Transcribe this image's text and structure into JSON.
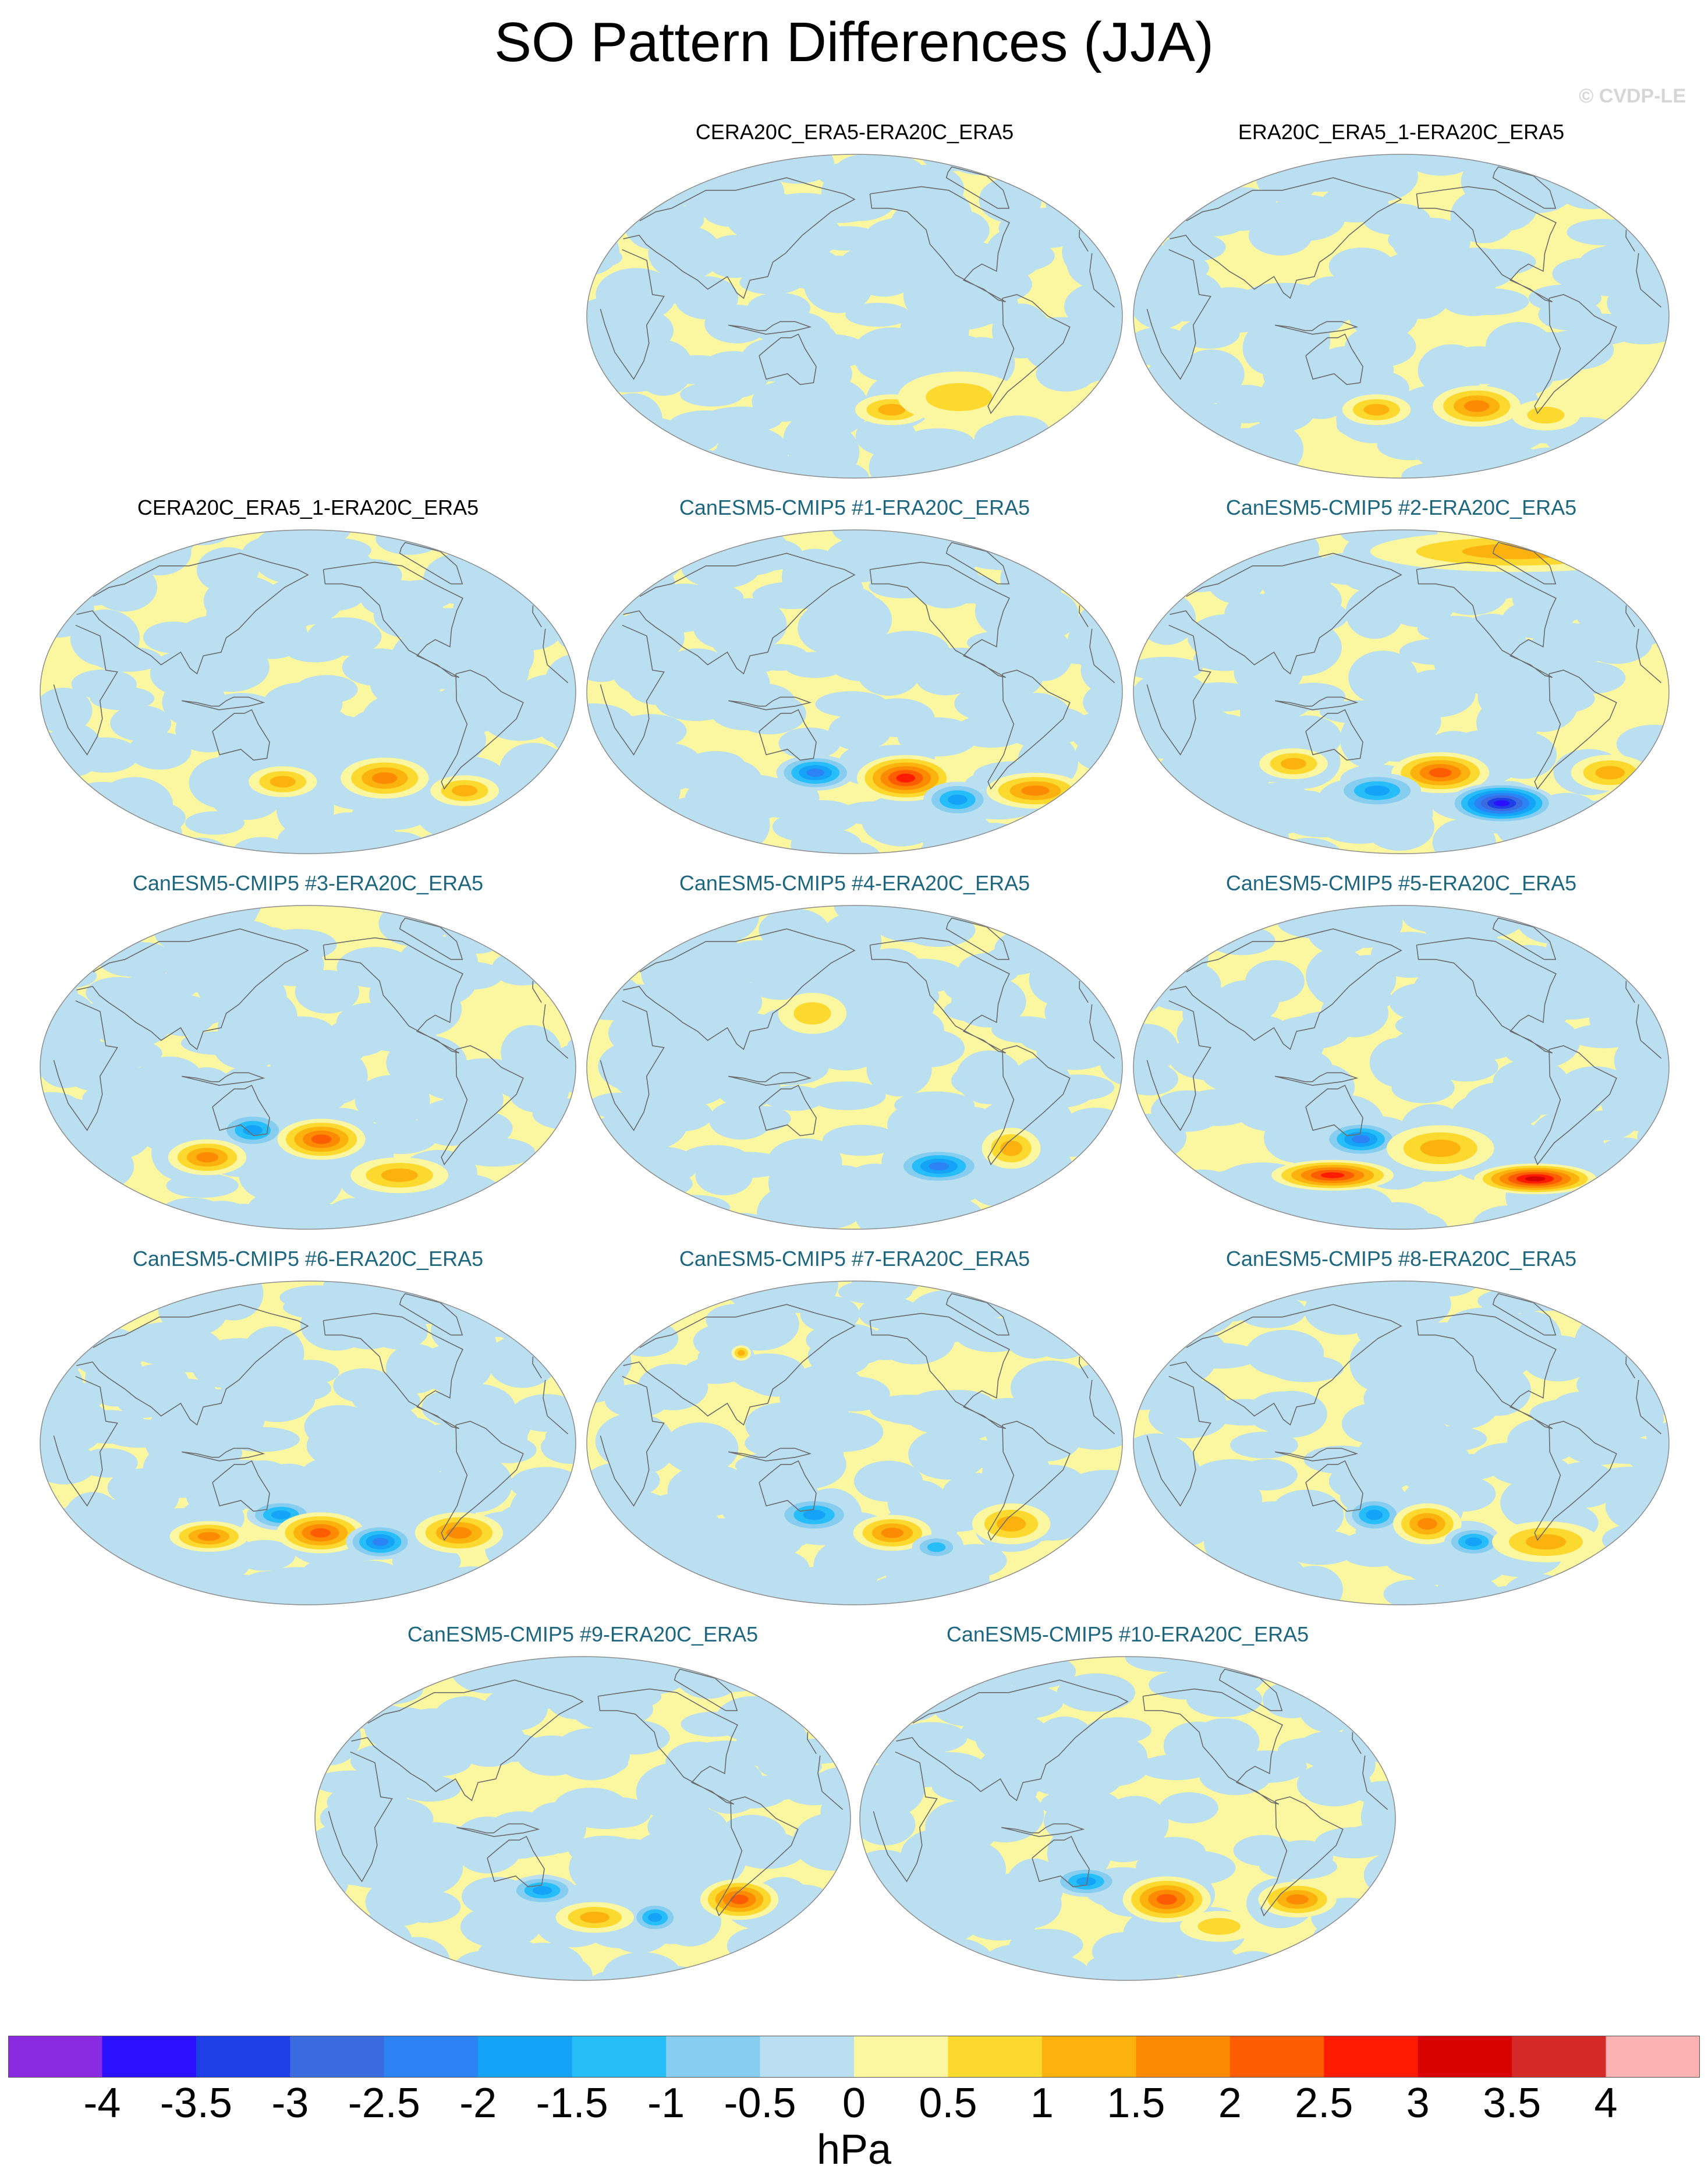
{
  "title": "SO Pattern Differences (JJA)",
  "watermark": "© CVDP-LE",
  "panels": [
    {
      "label": "CERA20C_ERA5-ERA20C_ERA5",
      "style": "obs",
      "blobs": [
        {
          "lon": -150,
          "lat": -52,
          "v": 1.0,
          "sx": 15,
          "sy": 6
        },
        {
          "lon": -100,
          "lat": -45,
          "v": 0.5,
          "sx": 25,
          "sy": 10
        }
      ]
    },
    {
      "label": "ERA20C_ERA5_1-ERA20C_ERA5",
      "style": "obs",
      "blobs": [
        {
          "lon": -120,
          "lat": -50,
          "v": 1.5,
          "sx": 18,
          "sy": 8
        },
        {
          "lon": 160,
          "lat": -52,
          "v": 0.8,
          "sx": 14,
          "sy": 6
        },
        {
          "lon": -60,
          "lat": -55,
          "v": 0.7,
          "sx": 14,
          "sy": 6
        }
      ]
    },
    {
      "label": "CERA20C_ERA5_1-ERA20C_ERA5",
      "style": "obs",
      "blobs": [
        {
          "lon": -120,
          "lat": -48,
          "v": 1.5,
          "sx": 18,
          "sy": 8
        },
        {
          "lon": 160,
          "lat": -50,
          "v": 0.8,
          "sx": 14,
          "sy": 6
        },
        {
          "lon": -50,
          "lat": -55,
          "v": 0.8,
          "sx": 14,
          "sy": 6
        }
      ]
    },
    {
      "label": "CanESM5-CMIP5 #1-ERA20C_ERA5",
      "style": "model",
      "blobs": [
        {
          "lon": 150,
          "lat": -45,
          "v": -2.0,
          "sx": 16,
          "sy": 7
        },
        {
          "lon": -140,
          "lat": -48,
          "v": 2.5,
          "sx": 20,
          "sy": 9
        },
        {
          "lon": -90,
          "lat": -60,
          "v": -1.5,
          "sx": 14,
          "sy": 7
        },
        {
          "lon": -30,
          "lat": -55,
          "v": 1.5,
          "sx": 20,
          "sy": 7
        }
      ]
    },
    {
      "label": "CanESM5-CMIP5 #2-ERA20C_ERA5",
      "style": "model",
      "blobs": [
        {
          "lon": -150,
          "lat": -45,
          "v": 2.0,
          "sx": 20,
          "sy": 8
        },
        {
          "lon": -90,
          "lat": -62,
          "v": -3.5,
          "sx": 22,
          "sy": 8
        },
        {
          "lon": 160,
          "lat": -55,
          "v": -1.5,
          "sx": 18,
          "sy": 7
        },
        {
          "lon": 100,
          "lat": -40,
          "v": 1.0,
          "sx": 14,
          "sy": 6
        },
        {
          "lon": -20,
          "lat": -45,
          "v": 1.0,
          "sx": 16,
          "sy": 7
        },
        {
          "lon": -40,
          "lat": 78,
          "v": 0.8,
          "sx": 60,
          "sy": 8
        }
      ]
    },
    {
      "label": "CanESM5-CMIP5 #3-ERA20C_ERA5",
      "style": "model",
      "blobs": [
        {
          "lon": 140,
          "lat": -35,
          "v": -1.5,
          "sx": 14,
          "sy": 7
        },
        {
          "lon": 100,
          "lat": -50,
          "v": 1.5,
          "sx": 16,
          "sy": 7
        },
        {
          "lon": -170,
          "lat": -40,
          "v": 2.0,
          "sx": 18,
          "sy": 8
        },
        {
          "lon": -100,
          "lat": -60,
          "v": 0.8,
          "sx": 20,
          "sy": 7
        }
      ]
    },
    {
      "label": "CanESM5-CMIP5 #4-ERA20C_ERA5",
      "style": "model",
      "blobs": [
        {
          "lon": -110,
          "lat": -55,
          "v": -2.0,
          "sx": 18,
          "sy": 7
        },
        {
          "lon": -60,
          "lat": -45,
          "v": 0.8,
          "sx": 12,
          "sy": 8
        },
        {
          "lon": 150,
          "lat": 30,
          "v": 0.7,
          "sx": 14,
          "sy": 8
        }
      ]
    },
    {
      "label": "CanESM5-CMIP5 #5-ERA20C_ERA5",
      "style": "model",
      "blobs": [
        {
          "lon": 150,
          "lat": -40,
          "v": -2.0,
          "sx": 16,
          "sy": 7
        },
        {
          "lon": 120,
          "lat": -60,
          "v": 2.5,
          "sx": 25,
          "sy": 6
        },
        {
          "lon": -60,
          "lat": -62,
          "v": 3.0,
          "sx": 25,
          "sy": 6
        },
        {
          "lon": -150,
          "lat": -45,
          "v": 1.0,
          "sx": 22,
          "sy": 9
        }
      ]
    },
    {
      "label": "CanESM5-CMIP5 #6-ERA20C_ERA5",
      "style": "model",
      "blobs": [
        {
          "lon": 160,
          "lat": -40,
          "v": -1.5,
          "sx": 14,
          "sy": 6
        },
        {
          "lon": -170,
          "lat": -50,
          "v": 2.0,
          "sx": 18,
          "sy": 8
        },
        {
          "lon": -120,
          "lat": -55,
          "v": -2.0,
          "sx": 14,
          "sy": 7
        },
        {
          "lon": -60,
          "lat": -50,
          "v": 1.5,
          "sx": 18,
          "sy": 8
        },
        {
          "lon": 100,
          "lat": -52,
          "v": 1.5,
          "sx": 16,
          "sy": 6
        }
      ]
    },
    {
      "label": "CanESM5-CMIP5 #7-ERA20C_ERA5",
      "style": "model",
      "blobs": [
        {
          "lon": 150,
          "lat": -40,
          "v": -1.5,
          "sx": 16,
          "sy": 7
        },
        {
          "lon": -150,
          "lat": -50,
          "v": 1.5,
          "sx": 16,
          "sy": 7
        },
        {
          "lon": -110,
          "lat": -58,
          "v": -1.0,
          "sx": 10,
          "sy": 5
        },
        {
          "lon": -60,
          "lat": -45,
          "v": 1.0,
          "sx": 16,
          "sy": 8
        },
        {
          "lon": 90,
          "lat": 50,
          "v": 1.0,
          "sx": 4,
          "sy": 3
        }
      ]
    },
    {
      "label": "CanESM5-CMIP5 #8-ERA20C_ERA5",
      "style": "model",
      "blobs": [
        {
          "lon": 160,
          "lat": -40,
          "v": -1.5,
          "sx": 12,
          "sy": 7
        },
        {
          "lon": -160,
          "lat": -45,
          "v": 1.5,
          "sx": 14,
          "sy": 8
        },
        {
          "lon": -120,
          "lat": -55,
          "v": -1.5,
          "sx": 12,
          "sy": 6
        },
        {
          "lon": -60,
          "lat": -55,
          "v": 1.0,
          "sx": 22,
          "sy": 8
        }
      ]
    },
    {
      "label": "CanESM5-CMIP5 #9-ERA20C_ERA5",
      "style": "model",
      "blobs": [
        {
          "lon": 150,
          "lat": -40,
          "v": -1.5,
          "sx": 14,
          "sy": 6
        },
        {
          "lon": -120,
          "lat": -55,
          "v": -1.5,
          "sx": 10,
          "sy": 6
        },
        {
          "lon": -60,
          "lat": -45,
          "v": 2.0,
          "sx": 16,
          "sy": 8
        },
        {
          "lon": -170,
          "lat": -55,
          "v": 0.8,
          "sx": 16,
          "sy": 6
        }
      ]
    },
    {
      "label": "CanESM5-CMIP5 #10-ERA20C_ERA5",
      "style": "model",
      "blobs": [
        {
          "lon": 150,
          "lat": -35,
          "v": -1.5,
          "sx": 14,
          "sy": 6
        },
        {
          "lon": -150,
          "lat": -45,
          "v": 2.0,
          "sx": 18,
          "sy": 9
        },
        {
          "lon": -50,
          "lat": -45,
          "v": 1.5,
          "sx": 16,
          "sy": 7
        },
        {
          "lon": -100,
          "lat": -60,
          "v": 0.7,
          "sx": 16,
          "sy": 6
        }
      ]
    }
  ],
  "colorbar": {
    "levels": [
      "-4",
      "-3.5",
      "-3",
      "-2.5",
      "-2",
      "-1.5",
      "-1",
      "-0.5",
      "0",
      "0.5",
      "1",
      "1.5",
      "2",
      "2.5",
      "3",
      "3.5",
      "4"
    ],
    "colors": [
      "#8a2be2",
      "#2b0fff",
      "#1f3fe6",
      "#3a6be0",
      "#2c84f4",
      "#14a3f7",
      "#27bdf8",
      "#86cdef",
      "#badff1",
      "#fbf6a0",
      "#fcd92f",
      "#fcb20e",
      "#fc8a02",
      "#fc5c02",
      "#fd1c02",
      "#d90202",
      "#d42a2a",
      "#fcb2b2"
    ],
    "unit": "hPa"
  }
}
